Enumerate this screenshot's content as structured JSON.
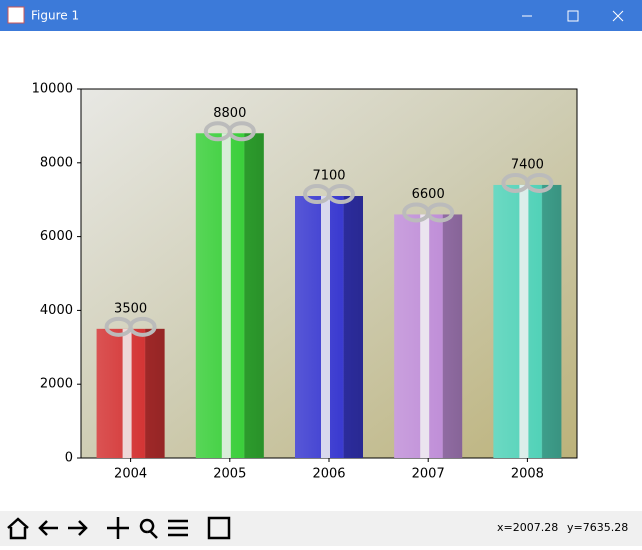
{
  "window": {
    "title": "Figure 1"
  },
  "status": {
    "x": "x=2007.28",
    "y": "y=7635.28"
  },
  "chart_data": {
    "type": "bar",
    "categories": [
      "2004",
      "2005",
      "2006",
      "2007",
      "2008"
    ],
    "values": [
      3500,
      8800,
      7100,
      6600,
      7400
    ],
    "colors": [
      "#d43535",
      "#3bcf3b",
      "#3a3ad0",
      "#c08fd8",
      "#52d2b8"
    ],
    "ylim": [
      0,
      10000
    ],
    "yticks": [
      0,
      2000,
      4000,
      6000,
      8000,
      10000
    ],
    "grid": false
  }
}
